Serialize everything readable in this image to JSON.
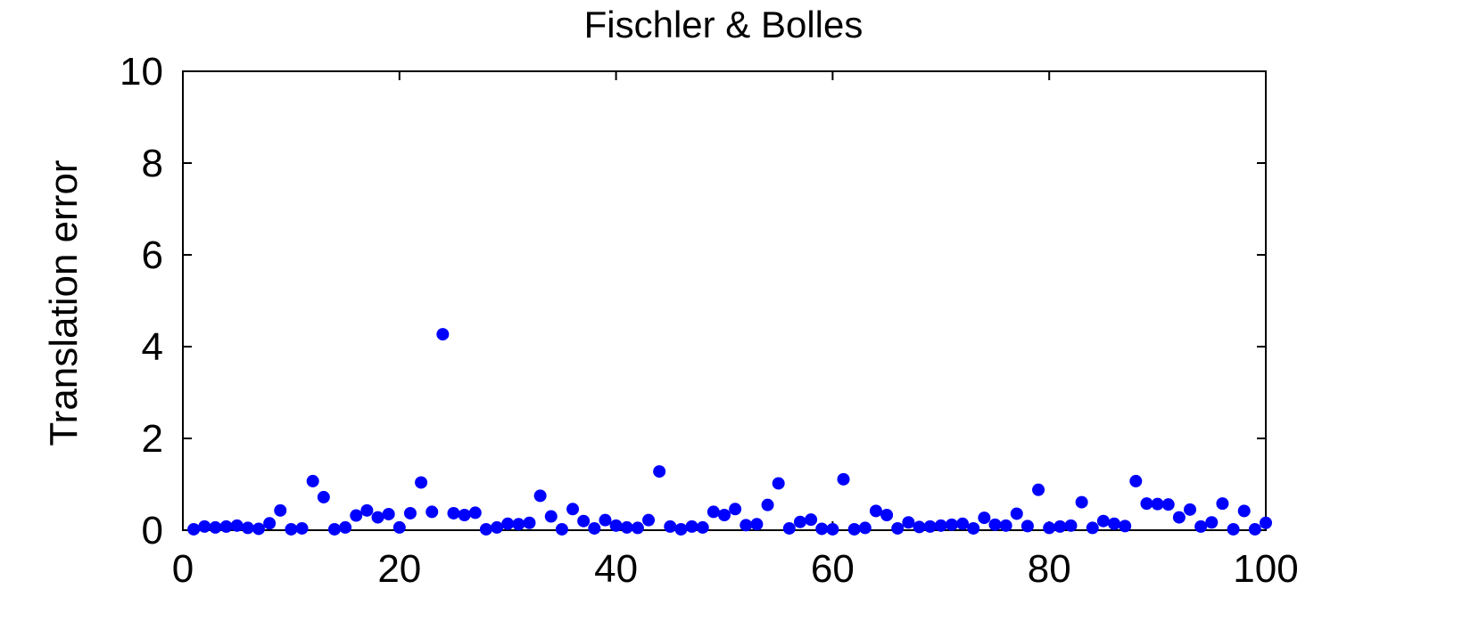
{
  "chart_data": {
    "type": "scatter",
    "title": "Fischler & Bolles",
    "xlabel": "",
    "ylabel": "Translation error",
    "xlim": [
      0,
      100
    ],
    "ylim": [
      0,
      10
    ],
    "xticks": [
      0,
      20,
      40,
      60,
      80,
      100
    ],
    "yticks": [
      0,
      2,
      4,
      6,
      8,
      10
    ],
    "grid": false,
    "marker_color": "#0000ff",
    "series": [
      {
        "x": [
          1,
          2,
          3,
          4,
          5,
          6,
          7,
          8,
          9,
          10,
          11,
          12,
          13,
          14,
          15,
          16,
          17,
          18,
          19,
          20,
          21,
          22,
          23,
          24,
          25,
          26,
          27,
          28,
          29,
          30,
          31,
          32,
          33,
          34,
          35,
          36,
          37,
          38,
          39,
          40,
          41,
          42,
          43,
          44,
          45,
          46,
          47,
          48,
          49,
          50,
          51,
          52,
          53,
          54,
          55,
          56,
          57,
          58,
          59,
          60,
          61,
          62,
          63,
          64,
          65,
          66,
          67,
          68,
          69,
          70,
          71,
          72,
          73,
          74,
          75,
          76,
          77,
          78,
          79,
          80,
          81,
          82,
          83,
          84,
          85,
          86,
          87,
          88,
          89,
          90,
          91,
          92,
          93,
          94,
          95,
          96,
          97,
          98,
          99,
          100
        ],
        "y": [
          0.02,
          0.08,
          0.06,
          0.08,
          0.1,
          0.05,
          0.03,
          0.15,
          0.43,
          0.02,
          0.04,
          1.07,
          0.72,
          0.02,
          0.06,
          0.32,
          0.43,
          0.28,
          0.35,
          0.06,
          0.37,
          1.04,
          0.4,
          4.27,
          0.37,
          0.33,
          0.38,
          0.02,
          0.06,
          0.14,
          0.13,
          0.16,
          0.75,
          0.3,
          0.02,
          0.46,
          0.2,
          0.04,
          0.22,
          0.1,
          0.06,
          0.05,
          0.22,
          1.28,
          0.08,
          0.02,
          0.08,
          0.06,
          0.4,
          0.33,
          0.46,
          0.11,
          0.13,
          0.55,
          1.02,
          0.04,
          0.18,
          0.23,
          0.03,
          0.02,
          1.11,
          0.02,
          0.05,
          0.42,
          0.33,
          0.04,
          0.17,
          0.07,
          0.08,
          0.1,
          0.12,
          0.14,
          0.04,
          0.27,
          0.12,
          0.1,
          0.36,
          0.09,
          0.88,
          0.05,
          0.08,
          0.1,
          0.61,
          0.05,
          0.2,
          0.14,
          0.09,
          1.07,
          0.58,
          0.57,
          0.56,
          0.28,
          0.45,
          0.08,
          0.17,
          0.58,
          0.02,
          0.42,
          0.02,
          0.16
        ]
      }
    ]
  }
}
